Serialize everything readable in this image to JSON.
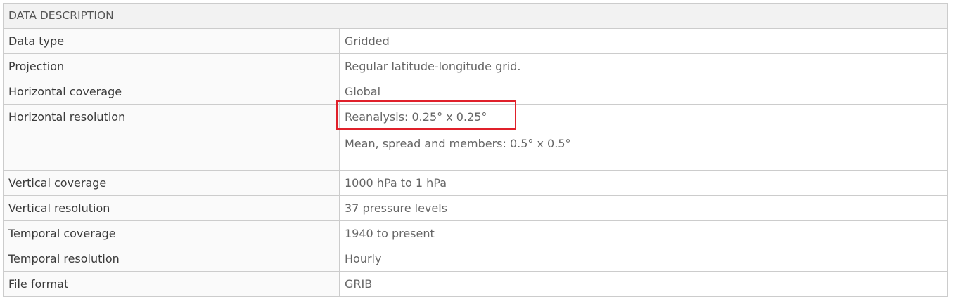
{
  "header": {
    "title": "DATA DESCRIPTION"
  },
  "rows": [
    {
      "label": "Data type",
      "values": [
        "Gridded"
      ]
    },
    {
      "label": "Projection",
      "values": [
        "Regular latitude-longitude grid."
      ]
    },
    {
      "label": "Horizontal coverage",
      "values": [
        "Global"
      ]
    },
    {
      "label": "Horizontal resolution",
      "values": [
        "Reanalysis: 0.25° x 0.25°",
        "Mean, spread and members: 0.5° x 0.5°"
      ]
    },
    {
      "label": "Vertical coverage",
      "values": [
        "1000 hPa to 1 hPa"
      ]
    },
    {
      "label": "Vertical resolution",
      "values": [
        "37 pressure levels"
      ]
    },
    {
      "label": "Temporal coverage",
      "values": [
        "1940 to present"
      ]
    },
    {
      "label": "Temporal resolution",
      "values": [
        "Hourly"
      ]
    },
    {
      "label": "File format",
      "values": [
        "GRIB"
      ]
    }
  ],
  "colors": {
    "highlight": "#e0202a",
    "header_bg": "#f2f2f2",
    "border": "#cccccc"
  }
}
